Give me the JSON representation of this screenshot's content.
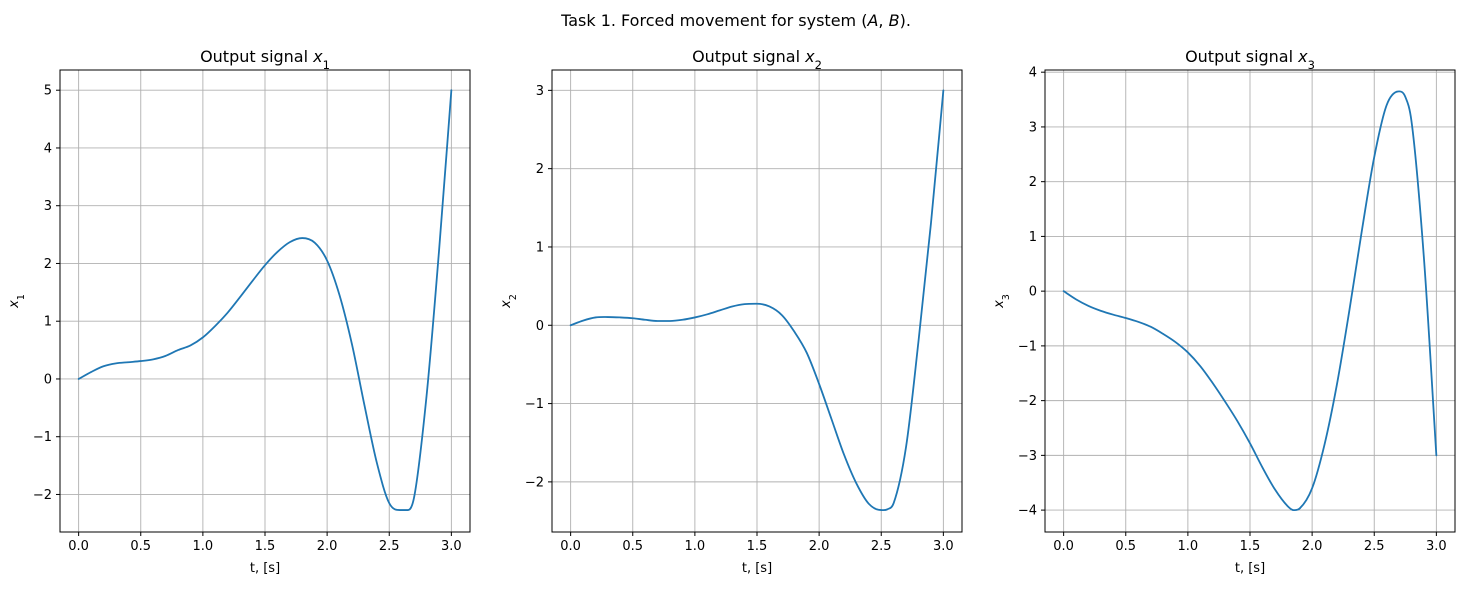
{
  "figure": {
    "suptitle": "Task 1. Forced movement for system $(A, B)$."
  },
  "chart_data": [
    {
      "type": "line",
      "title": "Output signal $x_1$",
      "xlabel": "t, [s]",
      "ylabel": "$x_1$",
      "xlim": [
        -0.15,
        3.15
      ],
      "ylim": [
        -2.65,
        5.35
      ],
      "xticks": [
        0.0,
        0.5,
        1.0,
        1.5,
        2.0,
        2.5,
        3.0
      ],
      "xtick_labels": [
        "0.0",
        "0.5",
        "1.0",
        "1.5",
        "2.0",
        "2.5",
        "3.0"
      ],
      "yticks": [
        -2,
        -1,
        0,
        1,
        2,
        3,
        4,
        5
      ],
      "ytick_labels": [
        "−2",
        "−1",
        "0",
        "1",
        "2",
        "3",
        "4",
        "5"
      ],
      "grid": true,
      "color": "#1f77b4",
      "x": [
        0.0,
        0.1,
        0.2,
        0.3,
        0.4,
        0.5,
        0.6,
        0.7,
        0.8,
        0.9,
        1.0,
        1.1,
        1.2,
        1.3,
        1.4,
        1.5,
        1.6,
        1.7,
        1.8,
        1.9,
        2.0,
        2.1,
        2.2,
        2.3,
        2.4,
        2.5,
        2.6,
        2.65,
        2.7,
        2.8,
        2.9,
        3.0
      ],
      "y": [
        0.0,
        0.12,
        0.22,
        0.27,
        0.29,
        0.31,
        0.34,
        0.4,
        0.5,
        0.58,
        0.72,
        0.92,
        1.15,
        1.42,
        1.7,
        1.97,
        2.2,
        2.37,
        2.44,
        2.36,
        2.05,
        1.45,
        0.6,
        -0.45,
        -1.45,
        -2.15,
        -2.27,
        -2.27,
        -2.05,
        -0.3,
        2.2,
        5.0
      ]
    },
    {
      "type": "line",
      "title": "Output signal $x_2$",
      "xlabel": "t, [s]",
      "ylabel": "$x_2$",
      "xlim": [
        -0.15,
        3.15
      ],
      "ylim": [
        -2.64,
        3.26
      ],
      "xticks": [
        0.0,
        0.5,
        1.0,
        1.5,
        2.0,
        2.5,
        3.0
      ],
      "xtick_labels": [
        "0.0",
        "0.5",
        "1.0",
        "1.5",
        "2.0",
        "2.5",
        "3.0"
      ],
      "yticks": [
        -2,
        -1,
        0,
        1,
        2,
        3
      ],
      "ytick_labels": [
        "−2",
        "−1",
        "0",
        "1",
        "2",
        "3"
      ],
      "grid": true,
      "color": "#1f77b4",
      "x": [
        0.0,
        0.1,
        0.2,
        0.3,
        0.4,
        0.5,
        0.6,
        0.7,
        0.8,
        0.9,
        1.0,
        1.1,
        1.2,
        1.3,
        1.4,
        1.5,
        1.6,
        1.7,
        1.8,
        1.9,
        2.0,
        2.1,
        2.2,
        2.3,
        2.4,
        2.5,
        2.55,
        2.6,
        2.7,
        2.8,
        2.9,
        3.0
      ],
      "y": [
        0.0,
        0.06,
        0.1,
        0.105,
        0.1,
        0.09,
        0.07,
        0.055,
        0.055,
        0.07,
        0.1,
        0.14,
        0.19,
        0.24,
        0.27,
        0.275,
        0.24,
        0.13,
        -0.08,
        -0.35,
        -0.75,
        -1.2,
        -1.65,
        -2.02,
        -2.28,
        -2.36,
        -2.35,
        -2.27,
        -1.55,
        -0.2,
        1.3,
        3.0
      ]
    },
    {
      "type": "line",
      "title": "Output signal $x_3$",
      "xlabel": "t, [s]",
      "ylabel": "$x_3$",
      "xlim": [
        -0.15,
        3.15
      ],
      "ylim": [
        -4.4,
        4.04
      ],
      "xticks": [
        0.0,
        0.5,
        1.0,
        1.5,
        2.0,
        2.5,
        3.0
      ],
      "xtick_labels": [
        "0.0",
        "0.5",
        "1.0",
        "1.5",
        "2.0",
        "2.5",
        "3.0"
      ],
      "yticks": [
        -4,
        -3,
        -2,
        -1,
        0,
        1,
        2,
        3,
        4
      ],
      "ytick_labels": [
        "−4",
        "−3",
        "−2",
        "−1",
        "0",
        "1",
        "2",
        "3",
        "4"
      ],
      "grid": true,
      "color": "#1f77b4",
      "x": [
        0.0,
        0.1,
        0.2,
        0.3,
        0.4,
        0.5,
        0.6,
        0.7,
        0.8,
        0.9,
        1.0,
        1.1,
        1.2,
        1.3,
        1.4,
        1.5,
        1.6,
        1.7,
        1.8,
        1.85,
        1.9,
        2.0,
        2.1,
        2.2,
        2.3,
        2.4,
        2.5,
        2.6,
        2.7,
        2.75,
        2.8,
        2.9,
        3.0
      ],
      "y": [
        0.0,
        -0.15,
        -0.27,
        -0.36,
        -0.43,
        -0.49,
        -0.56,
        -0.65,
        -0.78,
        -0.93,
        -1.12,
        -1.37,
        -1.68,
        -2.02,
        -2.38,
        -2.78,
        -3.22,
        -3.62,
        -3.92,
        -4.0,
        -3.97,
        -3.6,
        -2.8,
        -1.7,
        -0.35,
        1.1,
        2.45,
        3.4,
        3.65,
        3.55,
        3.1,
        0.6,
        -3.0
      ]
    }
  ]
}
